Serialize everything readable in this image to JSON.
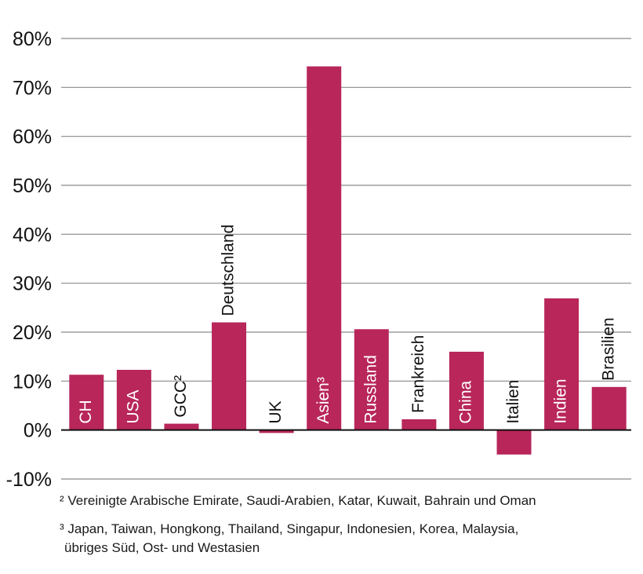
{
  "chart_data": {
    "type": "bar",
    "categories": [
      "CH",
      "USA",
      "GCC²",
      "Deutschland",
      "UK",
      "Asien³",
      "Russland",
      "Frankreich",
      "China",
      "Italien",
      "Indien",
      "Brasilien"
    ],
    "values": [
      11.3,
      12.3,
      1.3,
      22.0,
      -0.6,
      74.3,
      20.6,
      2.2,
      16.0,
      -5.0,
      26.9,
      8.8
    ],
    "ylim": [
      -10,
      80
    ],
    "yticks": [
      80,
      70,
      60,
      50,
      40,
      30,
      20,
      10,
      0,
      -10
    ],
    "ytick_labels": [
      "80%",
      "70%",
      "60%",
      "50%",
      "40%",
      "30%",
      "20%",
      "10%",
      "0%",
      "-10%"
    ],
    "bar_color": "#b8265a",
    "grid": true,
    "title": "",
    "xlabel": "",
    "ylabel": ""
  },
  "footnotes": {
    "fn2": "² Vereinigte Arabische Emirate, Saudi-Arabien, Katar, Kuwait, Bahrain und Oman",
    "fn3_line1": "³ Japan, Taiwan, Hongkong, Thailand, Singapur, Indonesien, Korea, Malaysia,",
    "fn3_line2": "übriges Süd, Ost- und Westasien"
  }
}
